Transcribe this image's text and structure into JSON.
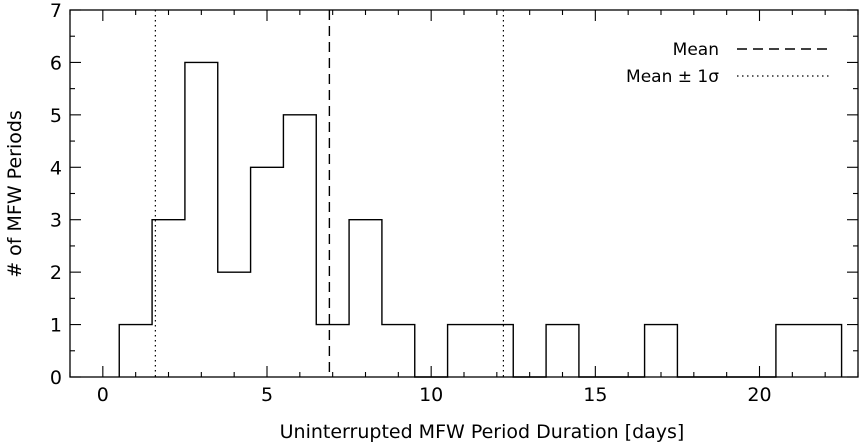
{
  "chart_data": {
    "type": "bar",
    "style": "step-histogram",
    "xlabel": "Uninterrupted MFW Period Duration [days]",
    "ylabel": "# of MFW Periods",
    "xlim": [
      -1,
      23
    ],
    "ylim": [
      0,
      7
    ],
    "xticks": [
      0,
      5,
      10,
      15,
      20
    ],
    "yticks": [
      0,
      1,
      2,
      3,
      4,
      5,
      6,
      7
    ],
    "bin_width": 1,
    "bins": [
      {
        "start": 0.5,
        "end": 1.5,
        "count": 1
      },
      {
        "start": 1.5,
        "end": 2.5,
        "count": 3
      },
      {
        "start": 2.5,
        "end": 3.5,
        "count": 6
      },
      {
        "start": 3.5,
        "end": 4.5,
        "count": 2
      },
      {
        "start": 4.5,
        "end": 5.5,
        "count": 4
      },
      {
        "start": 5.5,
        "end": 6.5,
        "count": 5
      },
      {
        "start": 6.5,
        "end": 7.5,
        "count": 1
      },
      {
        "start": 7.5,
        "end": 8.5,
        "count": 3
      },
      {
        "start": 8.5,
        "end": 9.5,
        "count": 1
      },
      {
        "start": 9.5,
        "end": 10.5,
        "count": 0
      },
      {
        "start": 10.5,
        "end": 11.5,
        "count": 1
      },
      {
        "start": 11.5,
        "end": 12.5,
        "count": 1
      },
      {
        "start": 12.5,
        "end": 13.5,
        "count": 0
      },
      {
        "start": 13.5,
        "end": 14.5,
        "count": 1
      },
      {
        "start": 14.5,
        "end": 15.5,
        "count": 0
      },
      {
        "start": 15.5,
        "end": 16.5,
        "count": 0
      },
      {
        "start": 16.5,
        "end": 17.5,
        "count": 1
      },
      {
        "start": 17.5,
        "end": 18.5,
        "count": 0
      },
      {
        "start": 18.5,
        "end": 19.5,
        "count": 0
      },
      {
        "start": 19.5,
        "end": 20.5,
        "count": 0
      },
      {
        "start": 20.5,
        "end": 21.5,
        "count": 1
      },
      {
        "start": 21.5,
        "end": 22.5,
        "count": 1
      }
    ],
    "reference_lines": [
      {
        "name": "Mean",
        "x": 6.9,
        "style": "dashed"
      },
      {
        "name": "Mean ± 1σ",
        "x": 1.6,
        "style": "dotted"
      },
      {
        "name": "Mean ± 1σ",
        "x": 12.2,
        "style": "dotted"
      }
    ],
    "legend": {
      "placement": "top-right",
      "entries": [
        {
          "label": "Mean",
          "style": "dashed"
        },
        {
          "label": "Mean ± 1σ",
          "style": "dotted"
        }
      ]
    },
    "grid": false
  }
}
